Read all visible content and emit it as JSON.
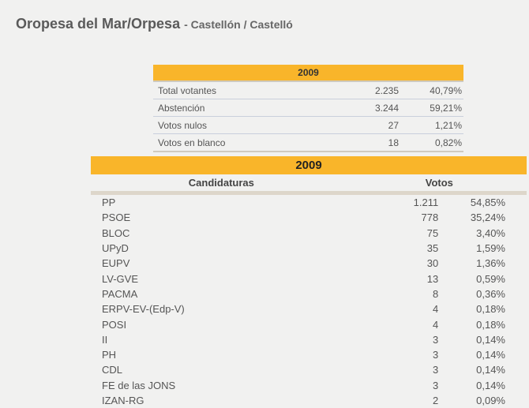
{
  "header": {
    "title": "Oropesa del Mar/Orpesa",
    "subtitle": "- Castellón / Castelló"
  },
  "summary": {
    "year": "2009",
    "rows": [
      {
        "label": "Total votantes",
        "value": "2.235",
        "pct": "40,79%"
      },
      {
        "label": "Abstención",
        "value": "3.244",
        "pct": "59,21%"
      },
      {
        "label": "Votos nulos",
        "value": "27",
        "pct": "1,21%"
      },
      {
        "label": "Votos en blanco",
        "value": "18",
        "pct": "0,82%"
      }
    ]
  },
  "results": {
    "year": "2009",
    "col_candidates": "Candidaturas",
    "col_votes": "Votos",
    "rows": [
      {
        "name": "PP",
        "votes": "1.211",
        "pct": "54,85%"
      },
      {
        "name": "PSOE",
        "votes": "778",
        "pct": "35,24%"
      },
      {
        "name": "BLOC",
        "votes": "75",
        "pct": "3,40%"
      },
      {
        "name": "UPyD",
        "votes": "35",
        "pct": "1,59%"
      },
      {
        "name": "EUPV",
        "votes": "30",
        "pct": "1,36%"
      },
      {
        "name": "LV-GVE",
        "votes": "13",
        "pct": "0,59%"
      },
      {
        "name": "PACMA",
        "votes": "8",
        "pct": "0,36%"
      },
      {
        "name": "ERPV-EV-(Edp-V)",
        "votes": "4",
        "pct": "0,18%"
      },
      {
        "name": "POSI",
        "votes": "4",
        "pct": "0,18%"
      },
      {
        "name": "II",
        "votes": "3",
        "pct": "0,14%"
      },
      {
        "name": "PH",
        "votes": "3",
        "pct": "0,14%"
      },
      {
        "name": "CDL",
        "votes": "3",
        "pct": "0,14%"
      },
      {
        "name": "FE de las JONS",
        "votes": "3",
        "pct": "0,14%"
      },
      {
        "name": "IZAN-RG",
        "votes": "2",
        "pct": "0,09%"
      }
    ]
  },
  "colors": {
    "accent": "#f9b52a",
    "background": "#f1f1f0"
  }
}
